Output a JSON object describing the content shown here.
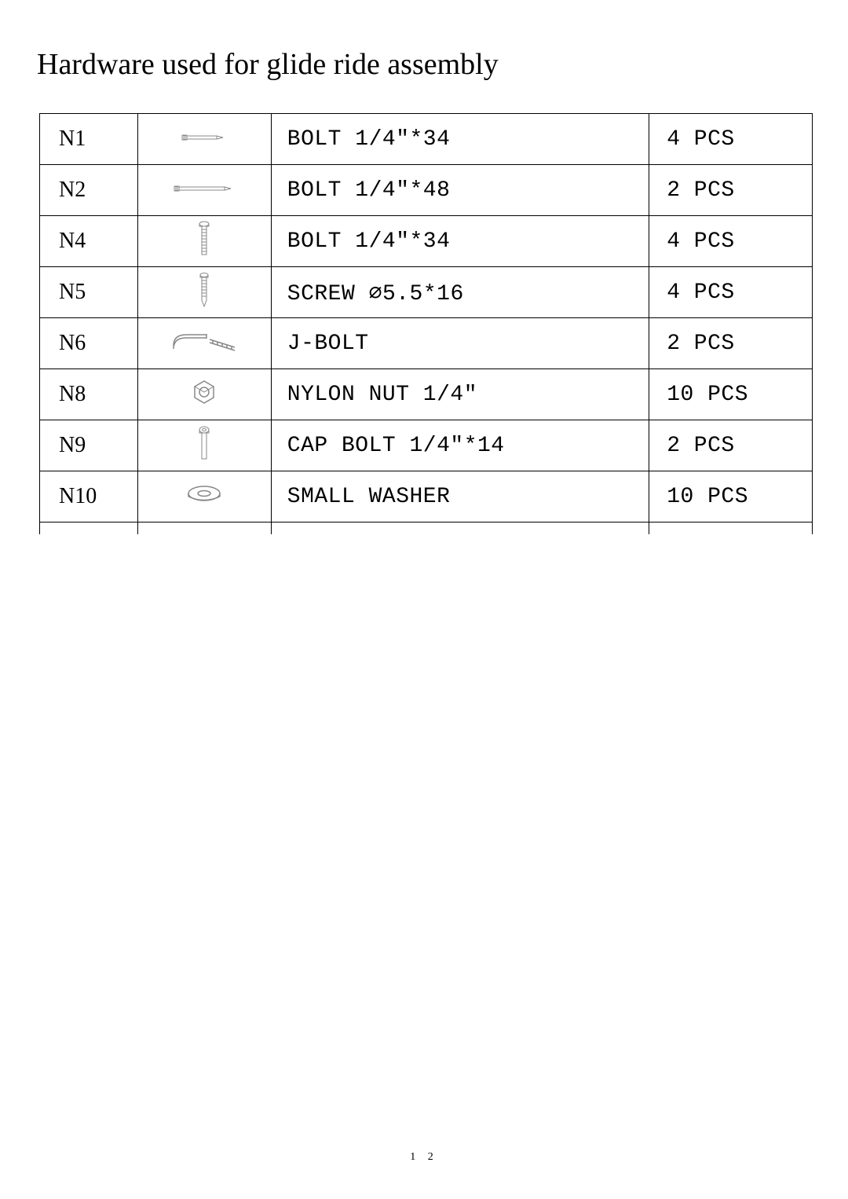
{
  "title": "Hardware used for glide ride assembly",
  "page_number": "1 2",
  "table": {
    "rows": [
      {
        "id": "N1",
        "icon": "bolt-h-short",
        "desc": "BOLT 1/4″*34",
        "qty": "4 PCS"
      },
      {
        "id": "N2",
        "icon": "bolt-h-long",
        "desc": "BOLT 1/4″*48",
        "qty": "2 PCS"
      },
      {
        "id": "N4",
        "icon": "bolt-v",
        "desc": "BOLT 1/4″*34",
        "qty": "4 PCS"
      },
      {
        "id": "N5",
        "icon": "screw-v",
        "desc": "SCREW ⌀5.5*16",
        "qty": "4 PCS"
      },
      {
        "id": "N6",
        "icon": "jbolt",
        "desc": "J-BOLT",
        "qty": "2 PCS"
      },
      {
        "id": "N8",
        "icon": "nut",
        "desc": "NYLON NUT 1/4″",
        "qty": "10 PCS"
      },
      {
        "id": "N9",
        "icon": "cap-bolt",
        "desc": "CAP BOLT 1/4″*14",
        "qty": "2 PCS"
      },
      {
        "id": "N10",
        "icon": "washer",
        "desc": "SMALL WASHER",
        "qty": "10 PCS"
      }
    ]
  },
  "icons": {
    "bolt-h-short": "<svg width='60' height='16' viewBox='0 0 60 16'><g stroke='#888' stroke-width='1' fill='none'><path d='M2 5 L2 11 L8 11 L8 5 Z'/><path d='M3 6 L7 6 M3 8 L7 8 M3 10 L7 10'/><rect x='8' y='6' width='38' height='4'/><path d='M46 6 L54 8 L46 10'/></g></svg>",
    "bolt-h-long": "<svg width='80' height='16' viewBox='0 0 80 16'><g stroke='#888' stroke-width='1' fill='none'><path d='M2 5 L2 11 L8 11 L8 5 Z'/><path d='M3 6 L7 6 M3 8 L7 8 M3 10 L7 10'/><rect x='8' y='6' width='58' height='4'/><path d='M66 6 L74 8 L66 10'/></g></svg>",
    "bolt-v": "<svg width='20' height='50' viewBox='0 0 20 50'><g stroke='#888' stroke-width='1' fill='none'><ellipse cx='10' cy='5' rx='6' ry='3'/><path d='M4 5 L4 8 L16 8 L16 5'/><path d='M7 8 L7 44 L13 44 L13 8'/><path d='M7 12 L13 12 M7 16 L13 16 M7 20 L13 20 M7 24 L13 24 M7 28 L13 28 M7 32 L13 32 M7 36 L13 36 M7 40 L13 40'/></g></svg>",
    "screw-v": "<svg width='18' height='48' viewBox='0 0 18 48'><g stroke='#888' stroke-width='1' fill='none'><ellipse cx='9' cy='4' rx='5' ry='2.5'/><path d='M4 4 L4 7 L14 7 L14 4'/><path d='M6 7 L6 36 L9 44 L12 36 L12 7'/><path d='M6 11 L12 11 M6 15 L12 15 M6 19 L12 19 M6 23 L12 23 M6 27 L12 27 M6 31 L12 31'/></g></svg>",
    "jbolt": "<svg width='90' height='34' viewBox='0 0 90 34'><g stroke='#888' stroke-width='1.5' fill='none'><path d='M6 22 Q6 8 22 8 L48 8'/><path d='M6 26 Q6 12 22 12 L48 12'/><path d='M48 7 L48 13'/><path d='M52 14 L84 24'/><path d='M52 18 L84 28'/><path d='M56 15 L56 19 M62 17 L62 21 M68 19 L68 23 M74 21 L74 25 M80 23 L80 27'/></g></svg>",
    "nut": "<svg width='40' height='36' viewBox='0 0 40 36'><g stroke='#888' stroke-width='1.5' fill='none'><path d='M20 3 L32 10 L32 24 L20 31 L8 24 L8 10 Z'/><ellipse cx='20' cy='17' rx='6' ry='6'/><path d='M20 3 L32 10 L20 17 L8 10 Z' stroke-width='1'/></g></svg>",
    "cap-bolt": "<svg width='18' height='46' viewBox='0 0 18 46'><g stroke='#888' stroke-width='1' fill='none'><ellipse cx='9' cy='5' rx='6' ry='4'/><ellipse cx='9' cy='5' rx='2.5' ry='1.5'/><path d='M3 5 L3 9 L15 9 L15 5'/><path d='M6 9 L6 42 L12 42 L12 9'/></g></svg>",
    "washer": "<svg width='50' height='30' viewBox='0 0 50 30'><g stroke='#888' stroke-width='1.5' fill='none'><ellipse cx='25' cy='13' rx='20' ry='9'/><ellipse cx='25' cy='13' rx='8' ry='3.5'/><path d='M5 13 L5 17 M45 13 L45 17'/><path d='M5 17 Q25 26 45 17'/></g></svg>"
  }
}
